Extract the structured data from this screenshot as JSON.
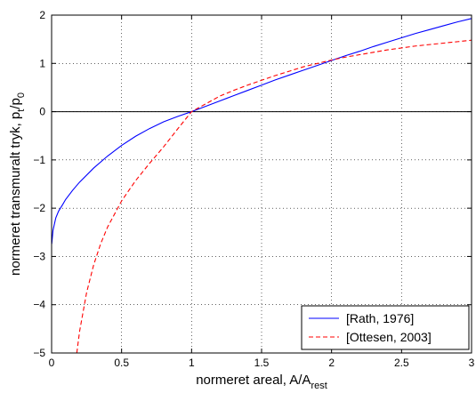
{
  "chart_data": {
    "type": "line",
    "title": "",
    "xlabel": "normeret  areal, A/A",
    "xlabel_sub": "rest",
    "ylabel": "normeret  transmuralt tryk, p",
    "ylabel_sub1": "t",
    "ylabel_mid": "/p",
    "ylabel_sub2": "0",
    "xlim": [
      0,
      3
    ],
    "ylim": [
      -5,
      2
    ],
    "x_ticks": [
      0,
      0.5,
      1,
      1.5,
      2,
      2.5,
      3
    ],
    "x_tick_labels": [
      "0",
      "0.5",
      "1",
      "1.5",
      "2",
      "2.5",
      "3"
    ],
    "y_ticks": [
      -5,
      -4,
      -3,
      -2,
      -1,
      0,
      1,
      2
    ],
    "y_tick_labels": [
      "−5",
      "−4",
      "−3",
      "−2",
      "−1",
      "0",
      "1",
      "2"
    ],
    "grid": true,
    "grid_style": "dotted",
    "zero_line": true,
    "legend_position": "bottom-right",
    "series": [
      {
        "name": "[Rath, 1976]",
        "color": "#0000ff",
        "style": "solid",
        "x": [
          0.001,
          0.01,
          0.03,
          0.05,
          0.08,
          0.1,
          0.15,
          0.2,
          0.3,
          0.4,
          0.5,
          0.6,
          0.7,
          0.8,
          0.9,
          1.0,
          1.1,
          1.2,
          1.3,
          1.4,
          1.5,
          1.6,
          1.7,
          1.8,
          1.9,
          2.0,
          2.1,
          2.2,
          2.3,
          2.4,
          2.5,
          2.6,
          2.7,
          2.8,
          2.9,
          3.0
        ],
        "y": [
          -2.74,
          -2.46,
          -2.2,
          -2.06,
          -1.92,
          -1.82,
          -1.63,
          -1.46,
          -1.17,
          -0.92,
          -0.7,
          -0.51,
          -0.35,
          -0.21,
          -0.1,
          0.0,
          0.11,
          0.22,
          0.33,
          0.44,
          0.55,
          0.66,
          0.76,
          0.86,
          0.96,
          1.06,
          1.16,
          1.25,
          1.35,
          1.44,
          1.53,
          1.62,
          1.7,
          1.78,
          1.86,
          1.93
        ]
      },
      {
        "name": "[Ottesen, 2003]",
        "color": "#ff0000",
        "style": "dashed",
        "x": [
          0.18,
          0.2,
          0.25,
          0.3,
          0.35,
          0.4,
          0.5,
          0.6,
          0.7,
          0.8,
          0.9,
          1.0,
          1.1,
          1.2,
          1.3,
          1.4,
          1.5,
          1.6,
          1.7,
          1.8,
          1.9,
          2.0,
          2.1,
          2.2,
          2.3,
          2.4,
          2.5,
          2.6,
          2.7,
          2.8,
          2.9,
          3.0
        ],
        "y": [
          -5.0,
          -4.55,
          -3.75,
          -3.18,
          -2.74,
          -2.39,
          -1.85,
          -1.43,
          -1.07,
          -0.73,
          -0.36,
          0.0,
          0.16,
          0.32,
          0.44,
          0.55,
          0.65,
          0.75,
          0.84,
          0.93,
          1.0,
          1.07,
          1.13,
          1.18,
          1.23,
          1.28,
          1.32,
          1.36,
          1.39,
          1.42,
          1.45,
          1.48
        ]
      }
    ]
  }
}
